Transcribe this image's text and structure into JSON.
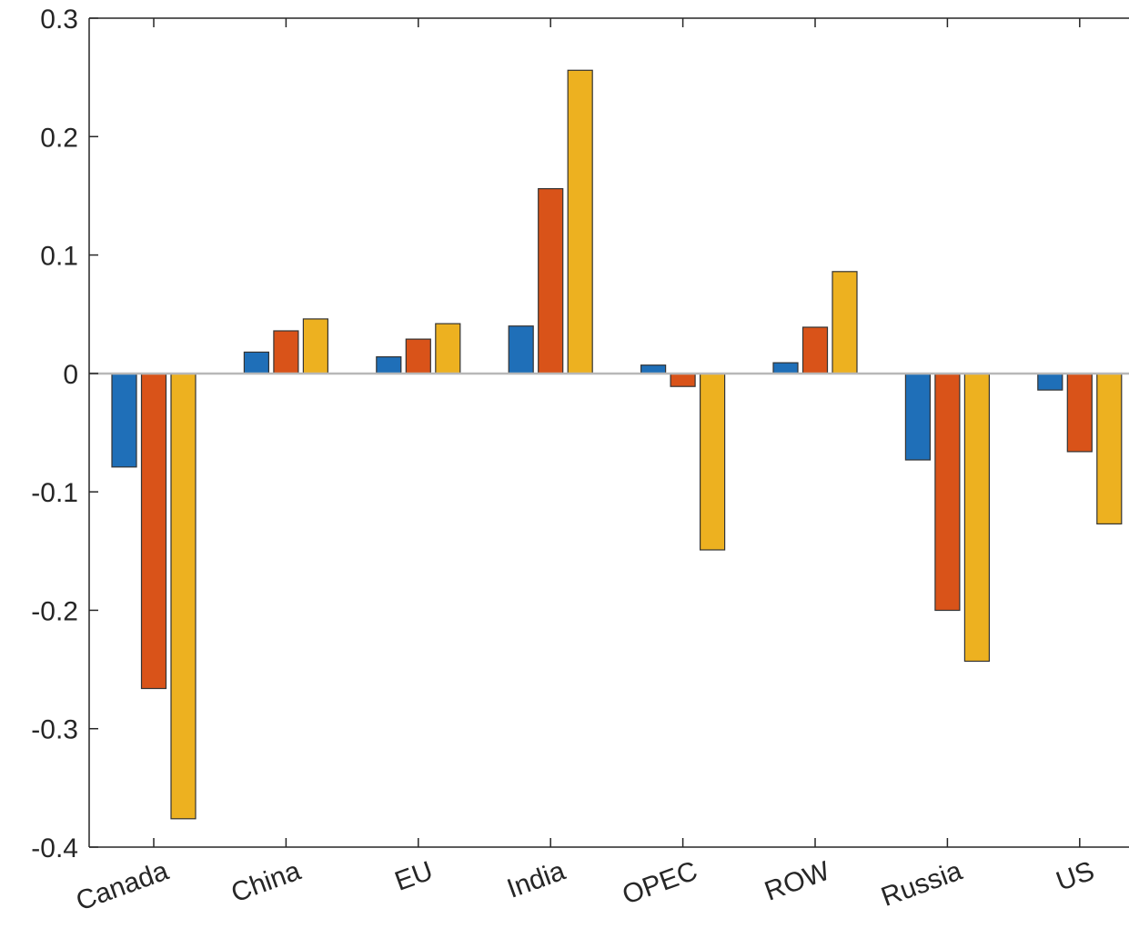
{
  "chart_data": {
    "type": "bar",
    "categories": [
      "Canada",
      "China",
      "EU",
      "India",
      "OPEC",
      "ROW",
      "Russia",
      "US"
    ],
    "series": [
      {
        "values": [
          -0.079,
          0.018,
          0.014,
          0.04,
          0.007,
          0.009,
          -0.073,
          -0.014
        ],
        "color": "#1f6fb8"
      },
      {
        "values": [
          -0.266,
          0.036,
          0.029,
          0.156,
          -0.011,
          0.039,
          -0.2,
          -0.066
        ],
        "color": "#d95319"
      },
      {
        "values": [
          -0.376,
          0.046,
          0.042,
          0.256,
          -0.149,
          0.086,
          -0.243,
          -0.127
        ],
        "color": "#edb120"
      }
    ],
    "yticks": [
      "0.3",
      "0.2",
      "0.1",
      "0",
      "-0.1",
      "-0.2",
      "-0.3",
      "-0.4"
    ],
    "ytick_values": [
      0.3,
      0.2,
      0.1,
      0,
      -0.1,
      -0.2,
      -0.3,
      -0.4
    ],
    "ylim": [
      -0.4,
      0.3
    ],
    "title": "",
    "xlabel": "",
    "ylabel": "",
    "grid": false,
    "legend": "none"
  }
}
